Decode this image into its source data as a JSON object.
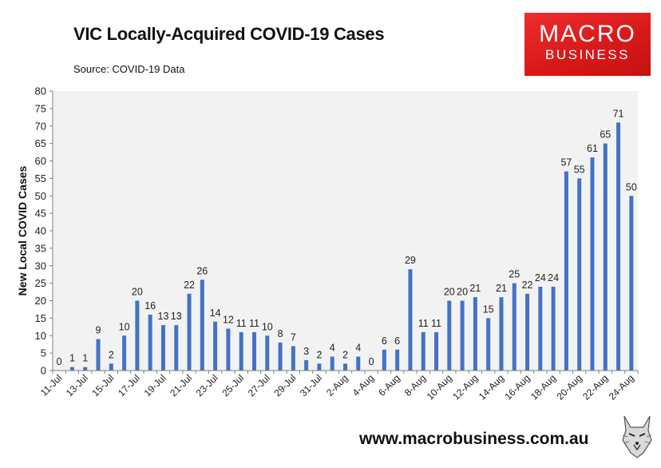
{
  "header": {
    "title": "VIC Locally-Acquired COVID-19 Cases",
    "source": "Source: COVID-19 Data"
  },
  "brand": {
    "line1": "MACRO",
    "line2": "BUSINESS",
    "color": "#e02020"
  },
  "footer": {
    "website": "www.macrobusiness.com.au",
    "mascot_icon": "wolf-mascot-icon"
  },
  "colors": {
    "bar": "#4472c4",
    "plot_bg": "#f2f2f2",
    "axis": "#808080"
  },
  "chart_data": {
    "type": "bar",
    "title": "VIC Locally-Acquired COVID-19 Cases",
    "xlabel": "",
    "ylabel": "New Local COVID Cases",
    "ylim": [
      0,
      80
    ],
    "yticks": [
      0,
      5,
      10,
      15,
      20,
      25,
      30,
      35,
      40,
      45,
      50,
      55,
      60,
      65,
      70,
      75,
      80
    ],
    "grid": false,
    "categories": [
      "11-Jul",
      "12-Jul",
      "13-Jul",
      "14-Jul",
      "15-Jul",
      "16-Jul",
      "17-Jul",
      "18-Jul",
      "19-Jul",
      "20-Jul",
      "21-Jul",
      "22-Jul",
      "23-Jul",
      "24-Jul",
      "25-Jul",
      "26-Jul",
      "27-Jul",
      "28-Jul",
      "29-Jul",
      "30-Jul",
      "31-Jul",
      "1-Aug",
      "2-Aug",
      "3-Aug",
      "4-Aug",
      "5-Aug",
      "6-Aug",
      "7-Aug",
      "8-Aug",
      "9-Aug",
      "10-Aug",
      "11-Aug",
      "12-Aug",
      "13-Aug",
      "14-Aug",
      "15-Aug",
      "16-Aug",
      "17-Aug",
      "18-Aug",
      "19-Aug",
      "20-Aug",
      "21-Aug",
      "22-Aug",
      "23-Aug",
      "24-Aug"
    ],
    "tick_labels": [
      "11-Jul",
      "13-Jul",
      "15-Jul",
      "17-Jul",
      "19-Jul",
      "21-Jul",
      "23-Jul",
      "25-Jul",
      "27-Jul",
      "29-Jul",
      "31-Jul",
      "2-Aug",
      "4-Aug",
      "6-Aug",
      "8-Aug",
      "10-Aug",
      "12-Aug",
      "14-Aug",
      "16-Aug",
      "18-Aug",
      "20-Aug",
      "22-Aug",
      "24-Aug"
    ],
    "series": [
      {
        "name": "New Local COVID Cases",
        "values": [
          0,
          1,
          1,
          9,
          2,
          10,
          20,
          16,
          13,
          13,
          22,
          26,
          14,
          12,
          11,
          11,
          10,
          8,
          7,
          3,
          2,
          4,
          2,
          4,
          0,
          6,
          6,
          29,
          11,
          11,
          20,
          20,
          21,
          15,
          21,
          25,
          22,
          24,
          24,
          57,
          55,
          61,
          65,
          71,
          50
        ]
      }
    ]
  }
}
